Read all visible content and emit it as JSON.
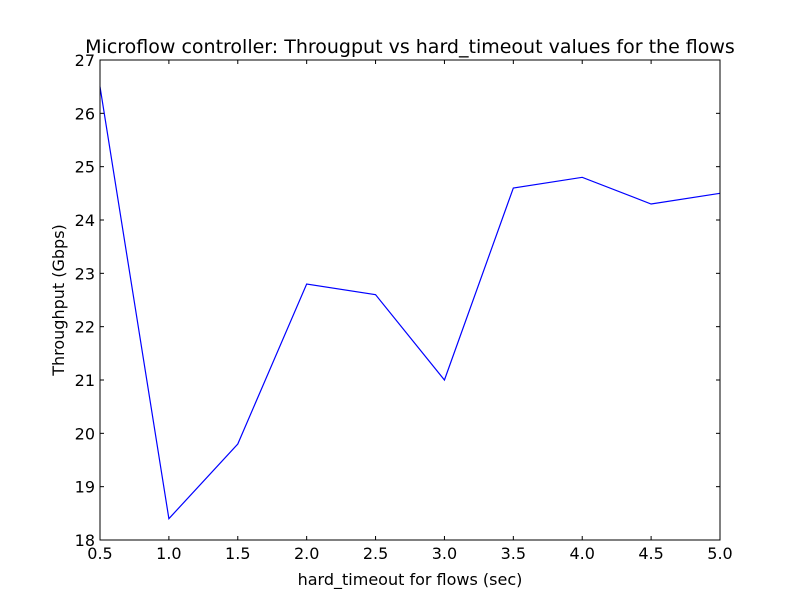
{
  "chart_data": {
    "type": "line",
    "title": "Microflow controller: Througput vs hard_timeout values for the flows",
    "xlabel": "hard_timeout for flows (sec)",
    "ylabel": "Throughput (Gbps)",
    "xlim": [
      0.5,
      5.0
    ],
    "ylim": [
      18,
      27
    ],
    "xticks": [
      0.5,
      1.0,
      1.5,
      2.0,
      2.5,
      3.0,
      3.5,
      4.0,
      4.5,
      5.0
    ],
    "xtick_labels": [
      "0.5",
      "1.0",
      "1.5",
      "2.0",
      "2.5",
      "3.0",
      "3.5",
      "4.0",
      "4.5",
      "5.0"
    ],
    "yticks": [
      18,
      19,
      20,
      21,
      22,
      23,
      24,
      25,
      26,
      27
    ],
    "ytick_labels": [
      "18",
      "19",
      "20",
      "21",
      "22",
      "23",
      "24",
      "25",
      "26",
      "27"
    ],
    "grid": false,
    "series": [
      {
        "color": "#0000ff",
        "x": [
          0.5,
          1.0,
          1.5,
          2.0,
          2.5,
          3.0,
          3.5,
          4.0,
          4.5,
          5.0
        ],
        "y": [
          26.5,
          18.4,
          19.8,
          22.8,
          22.6,
          21.0,
          24.6,
          24.8,
          24.3,
          24.5
        ]
      }
    ]
  }
}
